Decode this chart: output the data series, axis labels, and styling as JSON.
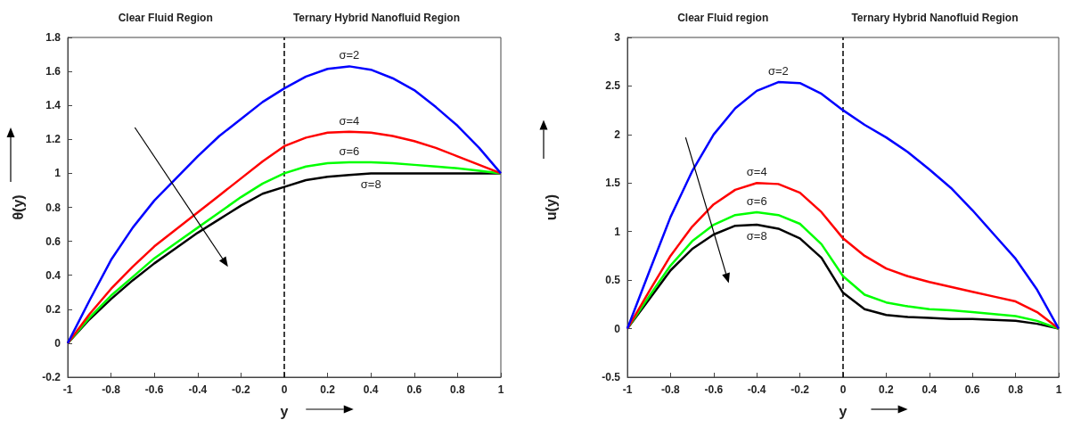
{
  "chart_data": [
    {
      "type": "line",
      "annotations": [
        "Clear Fluid Region",
        "Ternary Hybrid Nanofluid Region"
      ],
      "xlabel": "y",
      "ylabel": "θ(y)",
      "x": [
        -1,
        -0.9,
        -0.8,
        -0.7,
        -0.6,
        -0.5,
        -0.4,
        -0.3,
        -0.2,
        -0.1,
        0,
        0.1,
        0.2,
        0.3,
        0.4,
        0.5,
        0.6,
        0.7,
        0.8,
        0.9,
        1
      ],
      "series": [
        {
          "name": "σ=2",
          "color": "#0000ff",
          "values": [
            0,
            0.25,
            0.49,
            0.68,
            0.84,
            0.97,
            1.1,
            1.22,
            1.32,
            1.42,
            1.5,
            1.57,
            1.615,
            1.63,
            1.61,
            1.56,
            1.49,
            1.39,
            1.28,
            1.15,
            1.0
          ]
        },
        {
          "name": "σ=4",
          "color": "#ff0000",
          "values": [
            0,
            0.17,
            0.32,
            0.45,
            0.57,
            0.67,
            0.77,
            0.87,
            0.97,
            1.07,
            1.16,
            1.21,
            1.24,
            1.245,
            1.24,
            1.22,
            1.19,
            1.15,
            1.1,
            1.05,
            1.0
          ]
        },
        {
          "name": "σ=6",
          "color": "#00ff00",
          "values": [
            0,
            0.15,
            0.28,
            0.39,
            0.5,
            0.59,
            0.68,
            0.77,
            0.86,
            0.94,
            1.0,
            1.04,
            1.06,
            1.065,
            1.065,
            1.06,
            1.05,
            1.04,
            1.03,
            1.015,
            1.0
          ]
        },
        {
          "name": "σ=8",
          "color": "#000000",
          "values": [
            0,
            0.14,
            0.26,
            0.37,
            0.47,
            0.56,
            0.65,
            0.73,
            0.81,
            0.88,
            0.92,
            0.96,
            0.98,
            0.99,
            1.0,
            1.0,
            1.0,
            1.0,
            1.0,
            1.0,
            1.0
          ]
        }
      ],
      "xlim": [
        -1,
        1
      ],
      "xticks": [
        -1,
        -0.8,
        -0.6,
        -0.4,
        -0.2,
        0,
        0.2,
        0.4,
        0.6,
        0.8,
        1
      ],
      "ylim": [
        -0.2,
        1.8
      ],
      "yticks": [
        -0.2,
        0,
        0.2,
        0.4,
        0.6,
        0.8,
        1,
        1.2,
        1.4,
        1.6,
        1.8
      ],
      "ref_lines": [
        {
          "axis": "x",
          "value": 0,
          "color": "#000000",
          "line_style": "dashed"
        }
      ],
      "grid": false,
      "legend": false
    },
    {
      "type": "line",
      "annotations": [
        "Clear Fluid region",
        "Ternary Hybrid Nanofluid Region"
      ],
      "xlabel": "y",
      "ylabel": "u(y)",
      "x": [
        -1,
        -0.9,
        -0.8,
        -0.7,
        -0.6,
        -0.5,
        -0.4,
        -0.3,
        -0.2,
        -0.1,
        0,
        0.1,
        0.2,
        0.3,
        0.4,
        0.5,
        0.6,
        0.7,
        0.8,
        0.9,
        1
      ],
      "series": [
        {
          "name": "σ=2",
          "color": "#0000ff",
          "values": [
            0,
            0.58,
            1.15,
            1.62,
            2.0,
            2.27,
            2.45,
            2.54,
            2.53,
            2.42,
            2.25,
            2.1,
            1.97,
            1.82,
            1.64,
            1.45,
            1.22,
            0.97,
            0.72,
            0.4,
            0
          ]
        },
        {
          "name": "σ=4",
          "color": "#ff0000",
          "values": [
            0,
            0.38,
            0.75,
            1.05,
            1.28,
            1.43,
            1.5,
            1.49,
            1.4,
            1.2,
            0.93,
            0.75,
            0.62,
            0.54,
            0.48,
            0.43,
            0.38,
            0.33,
            0.28,
            0.17,
            0
          ]
        },
        {
          "name": "σ=6",
          "color": "#00ff00",
          "values": [
            0,
            0.33,
            0.65,
            0.9,
            1.07,
            1.17,
            1.2,
            1.17,
            1.08,
            0.87,
            0.54,
            0.35,
            0.27,
            0.23,
            0.2,
            0.19,
            0.17,
            0.15,
            0.13,
            0.08,
            0
          ]
        },
        {
          "name": "σ=8",
          "color": "#000000",
          "values": [
            0,
            0.3,
            0.6,
            0.82,
            0.97,
            1.06,
            1.07,
            1.03,
            0.93,
            0.73,
            0.37,
            0.2,
            0.14,
            0.12,
            0.11,
            0.1,
            0.1,
            0.09,
            0.08,
            0.05,
            0
          ]
        }
      ],
      "xlim": [
        -1,
        1
      ],
      "xticks": [
        -1,
        -0.8,
        -0.6,
        -0.4,
        -0.2,
        0,
        0.2,
        0.4,
        0.6,
        0.8,
        1
      ],
      "ylim": [
        -0.5,
        3
      ],
      "yticks": [
        -0.5,
        0,
        0.5,
        1,
        1.5,
        2,
        2.5,
        3
      ],
      "ref_lines": [
        {
          "axis": "x",
          "value": 0,
          "color": "#000000",
          "line_style": "dashed"
        }
      ],
      "grid": false,
      "legend": false
    }
  ]
}
